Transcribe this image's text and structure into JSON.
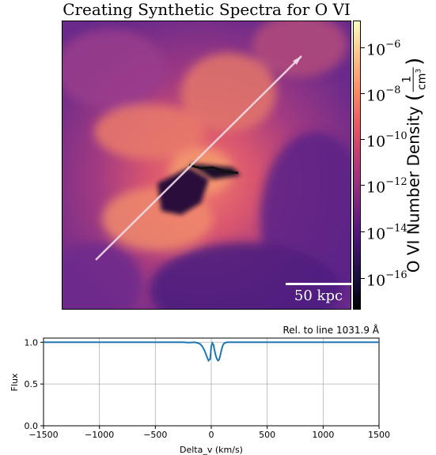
{
  "title": "Creating Synthetic Spectra for O VI",
  "colorbar": {
    "label": "O VI Number Density",
    "unit_numerator": "1",
    "unit_denominator": "cm3",
    "ticks": [
      {
        "base": "10",
        "exp": "−6"
      },
      {
        "base": "10",
        "exp": "−8"
      },
      {
        "base": "10",
        "exp": "−10"
      },
      {
        "base": "10",
        "exp": "−12"
      },
      {
        "base": "10",
        "exp": "−14"
      },
      {
        "base": "10",
        "exp": "−16"
      }
    ],
    "scale": "log",
    "colormap": "magma"
  },
  "scalebar_label": "50 kpc",
  "chart_data": [
    {
      "type": "heatmap",
      "title": "Creating Synthetic Spectra for O VI",
      "colorbar_label": "O VI Number Density (1/cm3)",
      "colorbar_scale": "log",
      "colorbar_range": [
        1e-17,
        1e-05
      ],
      "colorbar_ticks": [
        1e-06,
        1e-08,
        1e-10,
        1e-12,
        1e-14,
        1e-16
      ],
      "scalebar": "50 kpc"
    },
    {
      "type": "line",
      "annotation": "Rel. to line 1031.9 Å",
      "xlabel": "Delta_v (km/s)",
      "ylabel": "Flux",
      "xlim": [
        -1500,
        1500
      ],
      "ylim": [
        0.0,
        1.05
      ],
      "xticks": [
        "−1500",
        "−1000",
        "−500",
        "0",
        "500",
        "1000",
        "1500"
      ],
      "yticks": [
        "0.0",
        "0.5",
        "1.0"
      ],
      "grid": true,
      "series": [
        {
          "color": "#1f77b4",
          "x": [
            -1500,
            -1200,
            -800,
            -400,
            -250,
            -200,
            -150,
            -120,
            -100,
            -80,
            -60,
            -40,
            -25,
            -10,
            0,
            10,
            20,
            30,
            40,
            50,
            60,
            70,
            80,
            90,
            100,
            110,
            120,
            140,
            160,
            200,
            300,
            600,
            1000,
            1400,
            1500
          ],
          "y": [
            1.0,
            1.0,
            1.0,
            1.0,
            1.0,
            0.995,
            1.0,
            0.99,
            0.98,
            0.95,
            0.9,
            0.83,
            0.78,
            0.8,
            0.95,
            0.99,
            0.97,
            0.9,
            0.84,
            0.8,
            0.78,
            0.79,
            0.84,
            0.9,
            0.95,
            0.98,
            0.99,
            1.0,
            1.0,
            1.0,
            1.0,
            1.0,
            1.0,
            1.0,
            1.0
          ]
        }
      ]
    }
  ]
}
